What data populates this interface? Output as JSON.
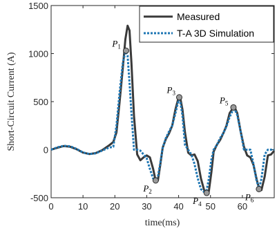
{
  "chart_data": {
    "type": "line",
    "title": "",
    "xlabel": "time(ms)",
    "ylabel": "Short-Circuit Current (A)",
    "xlim": [
      0,
      70
    ],
    "ylim": [
      -500,
      1500
    ],
    "x_ticks": [
      "0",
      "10",
      "20",
      "30",
      "40",
      "50",
      "60"
    ],
    "y_ticks": [
      "-500",
      "0",
      "500",
      "1000",
      "1500"
    ],
    "grid": false,
    "legend_position": "top-right",
    "series": [
      {
        "name": "Measured",
        "color": "#3a3a3a",
        "style": "solid",
        "x": [
          0,
          2,
          4,
          6,
          8,
          10,
          12,
          14,
          16,
          18,
          19.5,
          20.5,
          21.5,
          22.5,
          23.3,
          24,
          24.6,
          25.2,
          26,
          27,
          28,
          29,
          30,
          31,
          32,
          32.8,
          33.5,
          34.2,
          35,
          36,
          37,
          38,
          39,
          40,
          40.5,
          41.2,
          42,
          43,
          44,
          45,
          46,
          47,
          48,
          48.8,
          49.5,
          50.3,
          51,
          52,
          53,
          54,
          55,
          56,
          57,
          57.6,
          58.4,
          59.4,
          60.5,
          61.5,
          62.5,
          63.5,
          64.5,
          65.3,
          66,
          67,
          68,
          69,
          70
        ],
        "values": [
          0,
          20,
          38,
          30,
          5,
          -30,
          -45,
          -35,
          -5,
          40,
          80,
          180,
          500,
          850,
          1150,
          1290,
          1240,
          900,
          350,
          -50,
          -110,
          -80,
          -60,
          -80,
          -200,
          -320,
          -320,
          -170,
          20,
          110,
          170,
          250,
          420,
          545,
          540,
          420,
          180,
          -30,
          -60,
          -50,
          -120,
          -300,
          -420,
          -450,
          -430,
          -230,
          -20,
          50,
          100,
          170,
          250,
          380,
          430,
          440,
          380,
          200,
          30,
          -60,
          -80,
          -160,
          -310,
          -410,
          -420,
          -280,
          -60,
          -50,
          -10
        ]
      },
      {
        "name": "T-A 3D Simulation",
        "color": "#1f77b4",
        "style": "dotted",
        "x": [
          0,
          2,
          4,
          6,
          8,
          10,
          12,
          14,
          16,
          18,
          19.5,
          20.5,
          21.5,
          22.5,
          23.3,
          24,
          24.6,
          25.2,
          26,
          27,
          28,
          29,
          30,
          31,
          32,
          32.8,
          33.5,
          34.2,
          35,
          36,
          37,
          38,
          39,
          40,
          40.5,
          41.2,
          42,
          43,
          44,
          45,
          46,
          47,
          48,
          48.8,
          49.5,
          50.3,
          51,
          52,
          53,
          54,
          55,
          56,
          57,
          57.6,
          58.4,
          59.4,
          60.5,
          61.5,
          62.5,
          63.5,
          64.5,
          65.3,
          66,
          67,
          68,
          69,
          70
        ],
        "values": [
          0,
          25,
          40,
          35,
          8,
          -28,
          -45,
          -38,
          -10,
          20,
          30,
          250,
          600,
          900,
          1020,
          980,
          700,
          380,
          0,
          0,
          -10,
          -50,
          -90,
          -200,
          -300,
          -330,
          -280,
          -150,
          20,
          120,
          190,
          250,
          380,
          520,
          500,
          360,
          50,
          0,
          -50,
          -150,
          -300,
          -410,
          -440,
          -420,
          -300,
          -100,
          0,
          50,
          120,
          170,
          240,
          340,
          410,
          420,
          360,
          200,
          0,
          0,
          0,
          -150,
          -330,
          -400,
          -300,
          -50,
          0,
          0,
          0
        ]
      }
    ],
    "annotations": [
      {
        "letter": "P",
        "sub": "1",
        "x": 23.5,
        "y": 1030
      },
      {
        "letter": "P",
        "sub": "2",
        "x": 32.8,
        "y": -320
      },
      {
        "letter": "P",
        "sub": "3",
        "x": 40.2,
        "y": 545
      },
      {
        "letter": "P",
        "sub": "4",
        "x": 48.8,
        "y": -450
      },
      {
        "letter": "P",
        "sub": "5",
        "x": 57.2,
        "y": 440
      },
      {
        "letter": "P",
        "sub": "6",
        "x": 65.2,
        "y": -410
      }
    ]
  }
}
